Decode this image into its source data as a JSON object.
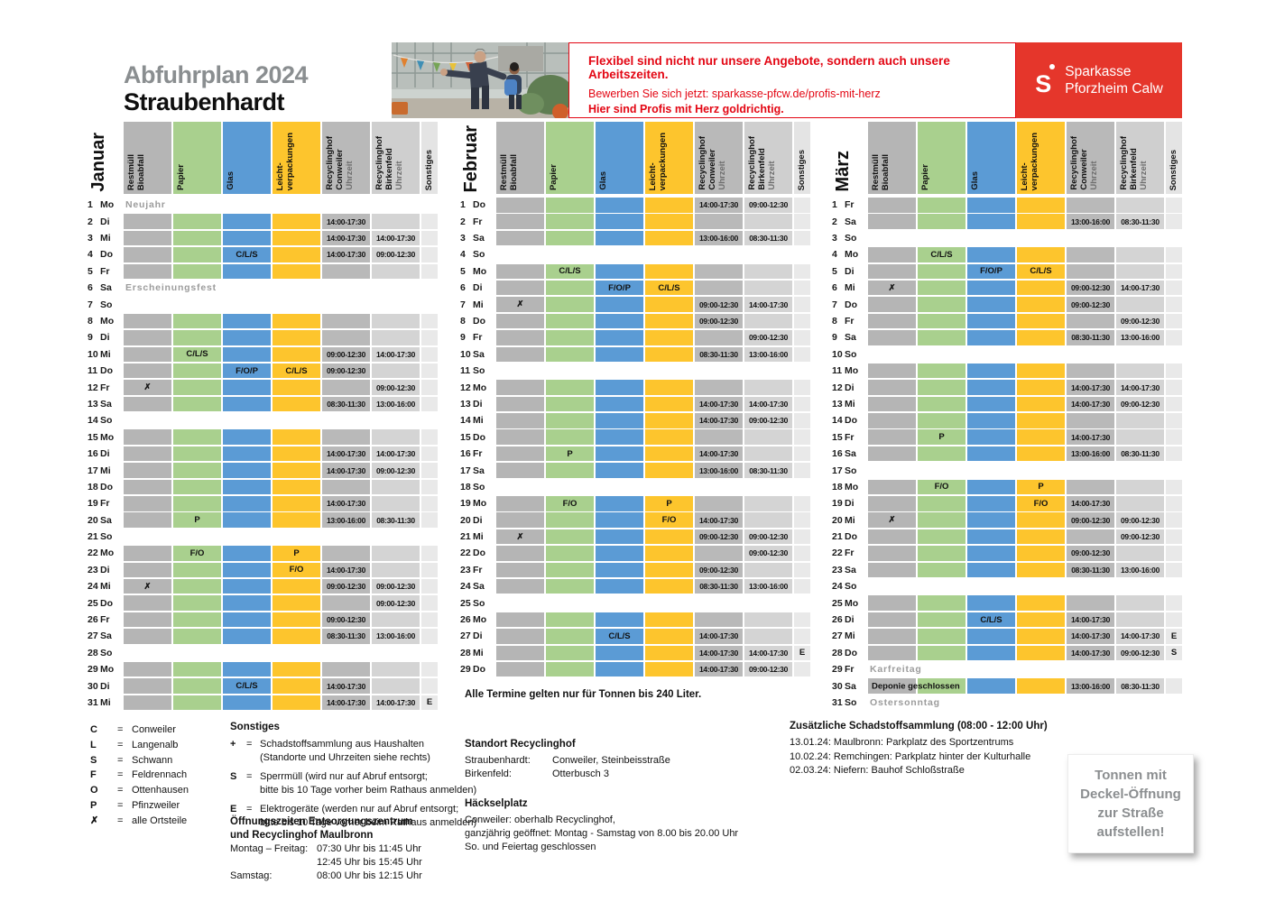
{
  "page": {
    "title_line1": "Abfuhrplan 2024",
    "title_line2": "Straubenhardt"
  },
  "banner": {
    "headline": "Flexibel sind nicht nur unsere Angebote, sondern auch unsere Arbeitszeiten.",
    "subline": "Bewerben Sie sich jetzt: sparkasse-pfcw.de/profis-mit-herz",
    "tagline": "Hier sind Profis mit Herz goldrichtig.",
    "brand_name": "Sparkasse",
    "brand_region": "Pforzheim Calw"
  },
  "colors": {
    "restmuell_gray": "#b5b5b5",
    "papier_green": "#a9d08e",
    "glas_blue": "#5b9bd5",
    "leichtverpackungen_yellow": "#fdc52d",
    "conweiler_gray": "#b9b9b9",
    "birkenfeld_gray": "#d4d4d4",
    "sonstiges_gray": "#e9e9e9",
    "sparkasse_red": "#e5362b",
    "ad_text_red": "#e30613",
    "holiday_gray": "#9c9c9c",
    "title_gray": "#8a8e90"
  },
  "header_columns": [
    {
      "cls": "rest",
      "lines": [
        "Restmüll",
        "Bioabfall"
      ]
    },
    {
      "cls": "pap",
      "lines": [
        "Papier"
      ]
    },
    {
      "cls": "glas",
      "lines": [
        "Glas"
      ]
    },
    {
      "cls": "lv",
      "lines": [
        "Leicht-",
        "verpackungen"
      ]
    },
    {
      "cls": "con",
      "lines": [
        "Recyclinghof",
        "Conweiler"
      ],
      "sub": "Uhrzeit"
    },
    {
      "cls": "bir",
      "lines": [
        "Recyclinghof",
        "Birkenfeld"
      ],
      "sub": "Uhrzeit"
    },
    {
      "cls": "so",
      "lines": [
        "Sonstiges"
      ]
    }
  ],
  "months": [
    {
      "name": "Januar",
      "days": [
        {
          "n": 1,
          "d": "Mo",
          "t": "off",
          "note": "Neujahr"
        },
        {
          "n": 2,
          "d": "Di",
          "t": "on",
          "con": "14:00-17:30"
        },
        {
          "n": 3,
          "d": "Mi",
          "t": "on",
          "con": "14:00-17:30",
          "bir": "14:00-17:30"
        },
        {
          "n": 4,
          "d": "Do",
          "t": "on",
          "glas": "C/L/S",
          "con": "14:00-17:30",
          "bir": "09:00-12:30"
        },
        {
          "n": 5,
          "d": "Fr",
          "t": "on"
        },
        {
          "n": 6,
          "d": "Sa",
          "t": "off",
          "note": "Erscheinungsfest"
        },
        {
          "n": 7,
          "d": "So",
          "t": "off"
        },
        {
          "n": 8,
          "d": "Mo",
          "t": "on"
        },
        {
          "n": 9,
          "d": "Di",
          "t": "on"
        },
        {
          "n": 10,
          "d": "Mi",
          "t": "on",
          "pap": "C/L/S",
          "con": "09:00-12:30",
          "bir": "14:00-17:30"
        },
        {
          "n": 11,
          "d": "Do",
          "t": "on",
          "glas": "F/O/P",
          "lv": "C/L/S",
          "con": "09:00-12:30"
        },
        {
          "n": 12,
          "d": "Fr",
          "t": "on",
          "rest": "✗",
          "bir": "09:00-12:30"
        },
        {
          "n": 13,
          "d": "Sa",
          "t": "on",
          "con": "08:30-11:30",
          "bir": "13:00-16:00"
        },
        {
          "n": 14,
          "d": "So",
          "t": "off"
        },
        {
          "n": 15,
          "d": "Mo",
          "t": "on"
        },
        {
          "n": 16,
          "d": "Di",
          "t": "on",
          "con": "14:00-17:30",
          "bir": "14:00-17:30"
        },
        {
          "n": 17,
          "d": "Mi",
          "t": "on",
          "con": "14:00-17:30",
          "bir": "09:00-12:30"
        },
        {
          "n": 18,
          "d": "Do",
          "t": "on"
        },
        {
          "n": 19,
          "d": "Fr",
          "t": "on",
          "con": "14:00-17:30"
        },
        {
          "n": 20,
          "d": "Sa",
          "t": "on",
          "pap": "P",
          "con": "13:00-16:00",
          "bir": "08:30-11:30"
        },
        {
          "n": 21,
          "d": "So",
          "t": "off"
        },
        {
          "n": 22,
          "d": "Mo",
          "t": "on",
          "pap": "F/O",
          "lv": "P"
        },
        {
          "n": 23,
          "d": "Di",
          "t": "on",
          "lv": "F/O",
          "con": "14:00-17:30"
        },
        {
          "n": 24,
          "d": "Mi",
          "t": "on",
          "rest": "✗",
          "con": "09:00-12:30",
          "bir": "09:00-12:30"
        },
        {
          "n": 25,
          "d": "Do",
          "t": "on",
          "bir": "09:00-12:30"
        },
        {
          "n": 26,
          "d": "Fr",
          "t": "on",
          "con": "09:00-12:30"
        },
        {
          "n": 27,
          "d": "Sa",
          "t": "on",
          "con": "08:30-11:30",
          "bir": "13:00-16:00"
        },
        {
          "n": 28,
          "d": "So",
          "t": "off"
        },
        {
          "n": 29,
          "d": "Mo",
          "t": "on"
        },
        {
          "n": 30,
          "d": "Di",
          "t": "on",
          "glas": "C/L/S",
          "con": "14:00-17:30"
        },
        {
          "n": 31,
          "d": "Mi",
          "t": "on",
          "con": "14:00-17:30",
          "bir": "14:00-17:30",
          "so": "E"
        }
      ]
    },
    {
      "name": "Februar",
      "days": [
        {
          "n": 1,
          "d": "Do",
          "t": "on",
          "con": "14:00-17:30",
          "bir": "09:00-12:30"
        },
        {
          "n": 2,
          "d": "Fr",
          "t": "on"
        },
        {
          "n": 3,
          "d": "Sa",
          "t": "on",
          "con": "13:00-16:00",
          "bir": "08:30-11:30"
        },
        {
          "n": 4,
          "d": "So",
          "t": "off"
        },
        {
          "n": 5,
          "d": "Mo",
          "t": "on",
          "pap": "C/L/S"
        },
        {
          "n": 6,
          "d": "Di",
          "t": "on",
          "glas": "F/O/P",
          "lv": "C/L/S"
        },
        {
          "n": 7,
          "d": "Mi",
          "t": "on",
          "rest": "✗",
          "con": "09:00-12:30",
          "bir": "14:00-17:30"
        },
        {
          "n": 8,
          "d": "Do",
          "t": "on",
          "con": "09:00-12:30"
        },
        {
          "n": 9,
          "d": "Fr",
          "t": "on",
          "bir": "09:00-12:30"
        },
        {
          "n": 10,
          "d": "Sa",
          "t": "on",
          "con": "08:30-11:30",
          "bir": "13:00-16:00"
        },
        {
          "n": 11,
          "d": "So",
          "t": "off"
        },
        {
          "n": 12,
          "d": "Mo",
          "t": "on"
        },
        {
          "n": 13,
          "d": "Di",
          "t": "on",
          "con": "14:00-17:30",
          "bir": "14:00-17:30"
        },
        {
          "n": 14,
          "d": "Mi",
          "t": "on",
          "con": "14:00-17:30",
          "bir": "09:00-12:30"
        },
        {
          "n": 15,
          "d": "Do",
          "t": "on"
        },
        {
          "n": 16,
          "d": "Fr",
          "t": "on",
          "pap": "P",
          "con": "14:00-17:30"
        },
        {
          "n": 17,
          "d": "Sa",
          "t": "on",
          "con": "13:00-16:00",
          "bir": "08:30-11:30"
        },
        {
          "n": 18,
          "d": "So",
          "t": "off"
        },
        {
          "n": 19,
          "d": "Mo",
          "t": "on",
          "pap": "F/O",
          "lv": "P"
        },
        {
          "n": 20,
          "d": "Di",
          "t": "on",
          "lv": "F/O",
          "con": "14:00-17:30"
        },
        {
          "n": 21,
          "d": "Mi",
          "t": "on",
          "rest": "✗",
          "con": "09:00-12:30",
          "bir": "09:00-12:30"
        },
        {
          "n": 22,
          "d": "Do",
          "t": "on",
          "bir": "09:00-12:30"
        },
        {
          "n": 23,
          "d": "Fr",
          "t": "on",
          "con": "09:00-12:30"
        },
        {
          "n": 24,
          "d": "Sa",
          "t": "on",
          "con": "08:30-11:30",
          "bir": "13:00-16:00"
        },
        {
          "n": 25,
          "d": "So",
          "t": "off"
        },
        {
          "n": 26,
          "d": "Mo",
          "t": "on"
        },
        {
          "n": 27,
          "d": "Di",
          "t": "on",
          "glas": "C/L/S",
          "con": "14:00-17:30"
        },
        {
          "n": 28,
          "d": "Mi",
          "t": "on",
          "con": "14:00-17:30",
          "bir": "14:00-17:30",
          "so": "E"
        },
        {
          "n": 29,
          "d": "Do",
          "t": "on",
          "con": "14:00-17:30",
          "bir": "09:00-12:30"
        }
      ]
    },
    {
      "name": "März",
      "days": [
        {
          "n": 1,
          "d": "Fr",
          "t": "on"
        },
        {
          "n": 2,
          "d": "Sa",
          "t": "on",
          "con": "13:00-16:00",
          "bir": "08:30-11:30"
        },
        {
          "n": 3,
          "d": "So",
          "t": "off"
        },
        {
          "n": 4,
          "d": "Mo",
          "t": "on",
          "pap": "C/L/S"
        },
        {
          "n": 5,
          "d": "Di",
          "t": "on",
          "glas": "F/O/P",
          "lv": "C/L/S"
        },
        {
          "n": 6,
          "d": "Mi",
          "t": "on",
          "rest": "✗",
          "con": "09:00-12:30",
          "bir": "14:00-17:30"
        },
        {
          "n": 7,
          "d": "Do",
          "t": "on",
          "con": "09:00-12:30"
        },
        {
          "n": 8,
          "d": "Fr",
          "t": "on",
          "bir": "09:00-12:30"
        },
        {
          "n": 9,
          "d": "Sa",
          "t": "on",
          "con": "08:30-11:30",
          "bir": "13:00-16:00"
        },
        {
          "n": 10,
          "d": "So",
          "t": "off"
        },
        {
          "n": 11,
          "d": "Mo",
          "t": "on"
        },
        {
          "n": 12,
          "d": "Di",
          "t": "on",
          "con": "14:00-17:30",
          "bir": "14:00-17:30"
        },
        {
          "n": 13,
          "d": "Mi",
          "t": "on",
          "con": "14:00-17:30",
          "bir": "09:00-12:30"
        },
        {
          "n": 14,
          "d": "Do",
          "t": "on"
        },
        {
          "n": 15,
          "d": "Fr",
          "t": "on",
          "pap": "P",
          "con": "14:00-17:30"
        },
        {
          "n": 16,
          "d": "Sa",
          "t": "on",
          "con": "13:00-16:00",
          "bir": "08:30-11:30"
        },
        {
          "n": 17,
          "d": "So",
          "t": "off"
        },
        {
          "n": 18,
          "d": "Mo",
          "t": "on",
          "pap": "F/O",
          "lv": "P"
        },
        {
          "n": 19,
          "d": "Di",
          "t": "on",
          "lv": "F/O",
          "con": "14:00-17:30"
        },
        {
          "n": 20,
          "d": "Mi",
          "t": "on",
          "rest": "✗",
          "con": "09:00-12:30",
          "bir": "09:00-12:30"
        },
        {
          "n": 21,
          "d": "Do",
          "t": "on",
          "bir": "09:00-12:30"
        },
        {
          "n": 22,
          "d": "Fr",
          "t": "on",
          "con": "09:00-12:30"
        },
        {
          "n": 23,
          "d": "Sa",
          "t": "on",
          "con": "08:30-11:30",
          "bir": "13:00-16:00"
        },
        {
          "n": 24,
          "d": "So",
          "t": "off"
        },
        {
          "n": 25,
          "d": "Mo",
          "t": "on"
        },
        {
          "n": 26,
          "d": "Di",
          "t": "on",
          "glas": "C/L/S",
          "con": "14:00-17:30"
        },
        {
          "n": 27,
          "d": "Mi",
          "t": "on",
          "con": "14:00-17:30",
          "bir": "14:00-17:30",
          "so": "E"
        },
        {
          "n": 28,
          "d": "Do",
          "t": "on",
          "con": "14:00-17:30",
          "bir": "09:00-12:30",
          "so": "S"
        },
        {
          "n": 29,
          "d": "Fr",
          "t": "off",
          "note": "Karfreitag"
        },
        {
          "n": 30,
          "d": "Sa",
          "t": "on",
          "note": "Deponie geschlossen",
          "con": "13:00-16:00",
          "bir": "08:30-11:30"
        },
        {
          "n": 31,
          "d": "So",
          "t": "off",
          "note": "Ostersonntag"
        }
      ]
    }
  ],
  "legend_places": {
    "eq": "=",
    "items": [
      {
        "sym": "C",
        "name": "Conweiler"
      },
      {
        "sym": "L",
        "name": "Langenalb"
      },
      {
        "sym": "S",
        "name": "Schwann"
      },
      {
        "sym": "F",
        "name": "Feldrennach"
      },
      {
        "sym": "O",
        "name": "Ottenhausen"
      },
      {
        "sym": "P",
        "name": "Pfinzweiler"
      },
      {
        "sym": "✗",
        "name": "alle Ortsteile"
      }
    ]
  },
  "legend_sonstiges": {
    "title": "Sonstiges",
    "eq": "=",
    "items": [
      {
        "sym": "+",
        "lines": [
          "Schadstoffsammlung aus Haushalten",
          "(Standorte und Uhrzeiten siehe rechts)"
        ]
      },
      {
        "sym": "S",
        "lines": [
          "Sperrmüll (wird nur auf Abruf entsorgt;",
          "bitte bis 10 Tage vorher beim Rathaus anmelden)"
        ]
      },
      {
        "sym": "E",
        "lines": [
          "Elektrogeräte (werden nur auf Abruf entsorgt;",
          "bitte bis 10 Tage vorher beim Rathaus anmelden)"
        ]
      }
    ]
  },
  "oeffnungszeiten": {
    "title_lines": [
      "Öffnungszeiten Entsorgungszentrum",
      "und Recyclinghof Maulbronn"
    ],
    "rows": [
      {
        "label": "Montag – Freitag:",
        "value": "07:30 Uhr bis 11:45 Uhr"
      },
      {
        "label": "",
        "value": "12:45 Uhr bis 15:45 Uhr"
      },
      {
        "label": "Samstag:",
        "value": "08:00 Uhr bis 12:15 Uhr"
      }
    ]
  },
  "tonnen_note": "Alle Termine gelten nur für Tonnen bis 240 Liter.",
  "standort": {
    "title": "Standort Recyclinghof",
    "rows": [
      {
        "label": "Straubenhardt:",
        "value": "Conweiler, Steinbeisstraße"
      },
      {
        "label": "Birkenfeld:",
        "value": "Otterbusch 3"
      }
    ]
  },
  "haeckselplatz": {
    "title": "Häckselplatz",
    "lines": [
      "Conweiler: oberhalb Recyclinghof,",
      "ganzjährig geöffnet: Montag - Samstag von 8.00 bis 20.00 Uhr",
      "So. und Feiertag geschlossen"
    ]
  },
  "schadstoffsammlung": {
    "title": "Zusätzliche Schadstoffsammlung (08:00 - 12:00 Uhr)",
    "lines": [
      "13.01.24: Maulbronn: Parkplatz des Sportzentrums",
      "10.02.24: Remchingen: Parkplatz hinter der Kulturhalle",
      "02.03.24: Niefern: Bauhof Schloßstraße"
    ]
  },
  "tonnen_box": {
    "lines": [
      "Tonnen mit",
      "Deckel-Öffnung",
      "zur Straße",
      "aufstellen!"
    ]
  }
}
